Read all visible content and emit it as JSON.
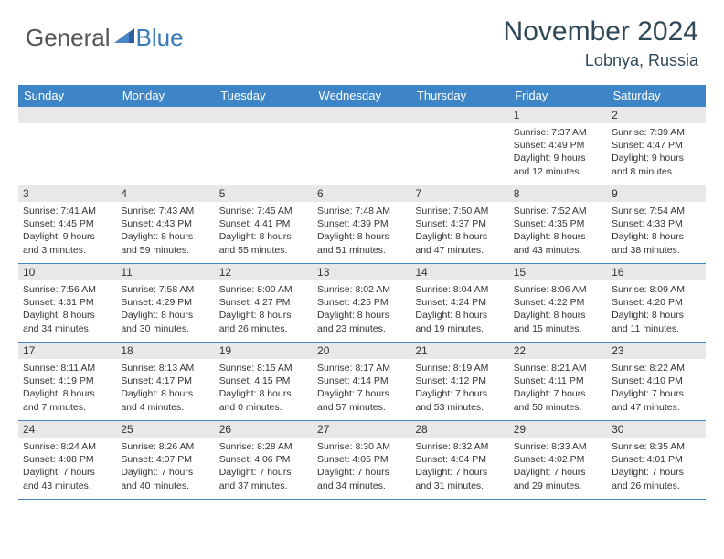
{
  "brand": {
    "part1": "General",
    "part2": "Blue"
  },
  "title": "November 2024",
  "location": "Lobnya, Russia",
  "weekdays": [
    "Sunday",
    "Monday",
    "Tuesday",
    "Wednesday",
    "Thursday",
    "Friday",
    "Saturday"
  ],
  "colors": {
    "header_bg": "#3d85c6",
    "header_text": "#ffffff",
    "daynum_bg": "#e8e8e8",
    "border": "#3d85c6",
    "title_color": "#2f4858",
    "logo_blue": "#3a7ab8"
  },
  "weeks": [
    [
      {
        "day": "",
        "sunrise": "",
        "sunset": "",
        "daylight": ""
      },
      {
        "day": "",
        "sunrise": "",
        "sunset": "",
        "daylight": ""
      },
      {
        "day": "",
        "sunrise": "",
        "sunset": "",
        "daylight": ""
      },
      {
        "day": "",
        "sunrise": "",
        "sunset": "",
        "daylight": ""
      },
      {
        "day": "",
        "sunrise": "",
        "sunset": "",
        "daylight": ""
      },
      {
        "day": "1",
        "sunrise": "Sunrise: 7:37 AM",
        "sunset": "Sunset: 4:49 PM",
        "daylight": "Daylight: 9 hours and 12 minutes."
      },
      {
        "day": "2",
        "sunrise": "Sunrise: 7:39 AM",
        "sunset": "Sunset: 4:47 PM",
        "daylight": "Daylight: 9 hours and 8 minutes."
      }
    ],
    [
      {
        "day": "3",
        "sunrise": "Sunrise: 7:41 AM",
        "sunset": "Sunset: 4:45 PM",
        "daylight": "Daylight: 9 hours and 3 minutes."
      },
      {
        "day": "4",
        "sunrise": "Sunrise: 7:43 AM",
        "sunset": "Sunset: 4:43 PM",
        "daylight": "Daylight: 8 hours and 59 minutes."
      },
      {
        "day": "5",
        "sunrise": "Sunrise: 7:45 AM",
        "sunset": "Sunset: 4:41 PM",
        "daylight": "Daylight: 8 hours and 55 minutes."
      },
      {
        "day": "6",
        "sunrise": "Sunrise: 7:48 AM",
        "sunset": "Sunset: 4:39 PM",
        "daylight": "Daylight: 8 hours and 51 minutes."
      },
      {
        "day": "7",
        "sunrise": "Sunrise: 7:50 AM",
        "sunset": "Sunset: 4:37 PM",
        "daylight": "Daylight: 8 hours and 47 minutes."
      },
      {
        "day": "8",
        "sunrise": "Sunrise: 7:52 AM",
        "sunset": "Sunset: 4:35 PM",
        "daylight": "Daylight: 8 hours and 43 minutes."
      },
      {
        "day": "9",
        "sunrise": "Sunrise: 7:54 AM",
        "sunset": "Sunset: 4:33 PM",
        "daylight": "Daylight: 8 hours and 38 minutes."
      }
    ],
    [
      {
        "day": "10",
        "sunrise": "Sunrise: 7:56 AM",
        "sunset": "Sunset: 4:31 PM",
        "daylight": "Daylight: 8 hours and 34 minutes."
      },
      {
        "day": "11",
        "sunrise": "Sunrise: 7:58 AM",
        "sunset": "Sunset: 4:29 PM",
        "daylight": "Daylight: 8 hours and 30 minutes."
      },
      {
        "day": "12",
        "sunrise": "Sunrise: 8:00 AM",
        "sunset": "Sunset: 4:27 PM",
        "daylight": "Daylight: 8 hours and 26 minutes."
      },
      {
        "day": "13",
        "sunrise": "Sunrise: 8:02 AM",
        "sunset": "Sunset: 4:25 PM",
        "daylight": "Daylight: 8 hours and 23 minutes."
      },
      {
        "day": "14",
        "sunrise": "Sunrise: 8:04 AM",
        "sunset": "Sunset: 4:24 PM",
        "daylight": "Daylight: 8 hours and 19 minutes."
      },
      {
        "day": "15",
        "sunrise": "Sunrise: 8:06 AM",
        "sunset": "Sunset: 4:22 PM",
        "daylight": "Daylight: 8 hours and 15 minutes."
      },
      {
        "day": "16",
        "sunrise": "Sunrise: 8:09 AM",
        "sunset": "Sunset: 4:20 PM",
        "daylight": "Daylight: 8 hours and 11 minutes."
      }
    ],
    [
      {
        "day": "17",
        "sunrise": "Sunrise: 8:11 AM",
        "sunset": "Sunset: 4:19 PM",
        "daylight": "Daylight: 8 hours and 7 minutes."
      },
      {
        "day": "18",
        "sunrise": "Sunrise: 8:13 AM",
        "sunset": "Sunset: 4:17 PM",
        "daylight": "Daylight: 8 hours and 4 minutes."
      },
      {
        "day": "19",
        "sunrise": "Sunrise: 8:15 AM",
        "sunset": "Sunset: 4:15 PM",
        "daylight": "Daylight: 8 hours and 0 minutes."
      },
      {
        "day": "20",
        "sunrise": "Sunrise: 8:17 AM",
        "sunset": "Sunset: 4:14 PM",
        "daylight": "Daylight: 7 hours and 57 minutes."
      },
      {
        "day": "21",
        "sunrise": "Sunrise: 8:19 AM",
        "sunset": "Sunset: 4:12 PM",
        "daylight": "Daylight: 7 hours and 53 minutes."
      },
      {
        "day": "22",
        "sunrise": "Sunrise: 8:21 AM",
        "sunset": "Sunset: 4:11 PM",
        "daylight": "Daylight: 7 hours and 50 minutes."
      },
      {
        "day": "23",
        "sunrise": "Sunrise: 8:22 AM",
        "sunset": "Sunset: 4:10 PM",
        "daylight": "Daylight: 7 hours and 47 minutes."
      }
    ],
    [
      {
        "day": "24",
        "sunrise": "Sunrise: 8:24 AM",
        "sunset": "Sunset: 4:08 PM",
        "daylight": "Daylight: 7 hours and 43 minutes."
      },
      {
        "day": "25",
        "sunrise": "Sunrise: 8:26 AM",
        "sunset": "Sunset: 4:07 PM",
        "daylight": "Daylight: 7 hours and 40 minutes."
      },
      {
        "day": "26",
        "sunrise": "Sunrise: 8:28 AM",
        "sunset": "Sunset: 4:06 PM",
        "daylight": "Daylight: 7 hours and 37 minutes."
      },
      {
        "day": "27",
        "sunrise": "Sunrise: 8:30 AM",
        "sunset": "Sunset: 4:05 PM",
        "daylight": "Daylight: 7 hours and 34 minutes."
      },
      {
        "day": "28",
        "sunrise": "Sunrise: 8:32 AM",
        "sunset": "Sunset: 4:04 PM",
        "daylight": "Daylight: 7 hours and 31 minutes."
      },
      {
        "day": "29",
        "sunrise": "Sunrise: 8:33 AM",
        "sunset": "Sunset: 4:02 PM",
        "daylight": "Daylight: 7 hours and 29 minutes."
      },
      {
        "day": "30",
        "sunrise": "Sunrise: 8:35 AM",
        "sunset": "Sunset: 4:01 PM",
        "daylight": "Daylight: 7 hours and 26 minutes."
      }
    ]
  ]
}
